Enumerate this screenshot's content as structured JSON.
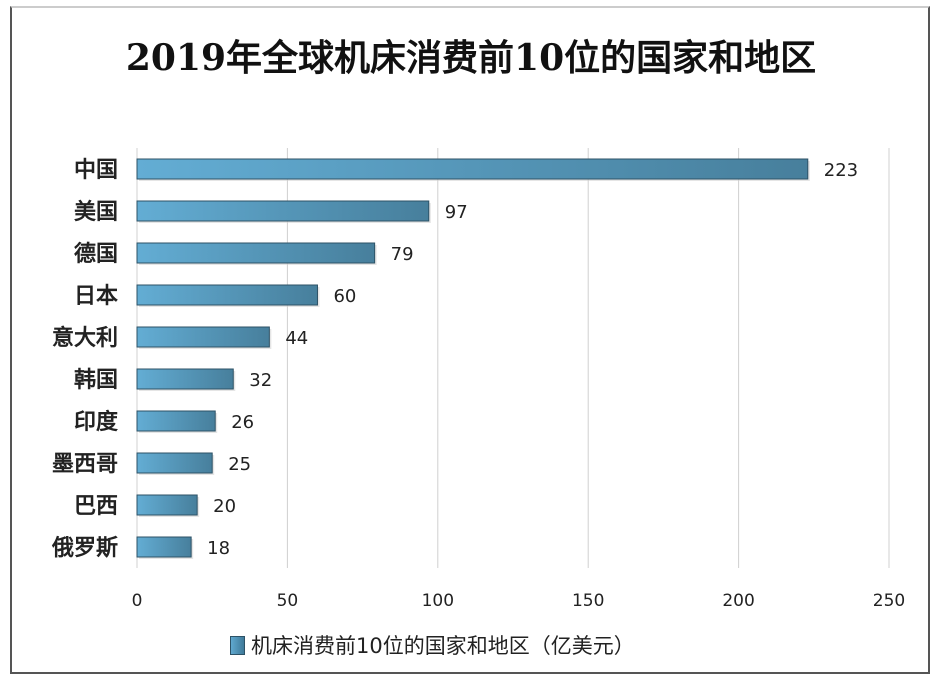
{
  "chart_data": {
    "type": "bar",
    "orientation": "horizontal",
    "title": "2019年全球机床消费前10位的国家和地区",
    "categories": [
      "中国",
      "美国",
      "德国",
      "日本",
      "意大利",
      "韩国",
      "印度",
      "墨西哥",
      "巴西",
      "俄罗斯"
    ],
    "series": [
      {
        "name": "机床消费前10位的国家和地区（亿美元）",
        "values": [
          223,
          97,
          79,
          60,
          44,
          32,
          26,
          25,
          20,
          18
        ]
      }
    ],
    "xlim": [
      0,
      250
    ],
    "xticks": [
      0,
      50,
      100,
      150,
      200,
      250
    ],
    "grid": true,
    "legend_position": "bottom",
    "bar_color": "#5aa3c9"
  }
}
